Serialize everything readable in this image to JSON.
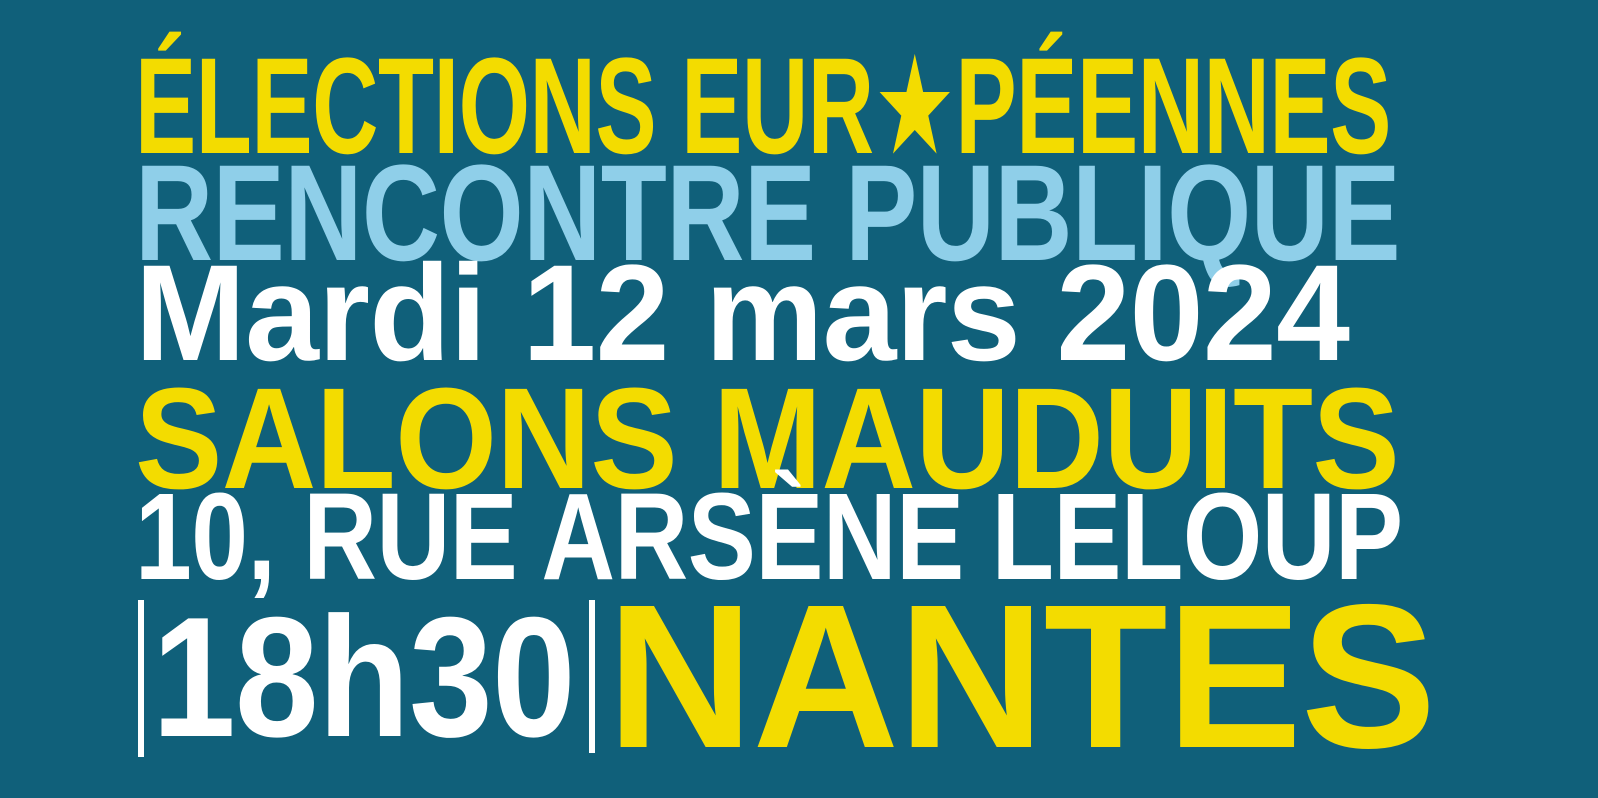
{
  "poster": {
    "colors": {
      "background": "#10607A",
      "yellow": "#F3DC00",
      "light_blue": "#8FCFE9",
      "white": "#FFFFFF"
    },
    "title": {
      "prefix": "ÉLECTIONS EUR",
      "star": "★",
      "suffix": "PÉENNES"
    },
    "subtitle": "RENCONTRE PUBLIQUE",
    "date": "Mardi 12 mars 2024",
    "venue": "SALONS MAUDUITS",
    "address": "10, RUE ARSÈNE LELOUP",
    "time": "18h30",
    "city": "NANTES"
  }
}
